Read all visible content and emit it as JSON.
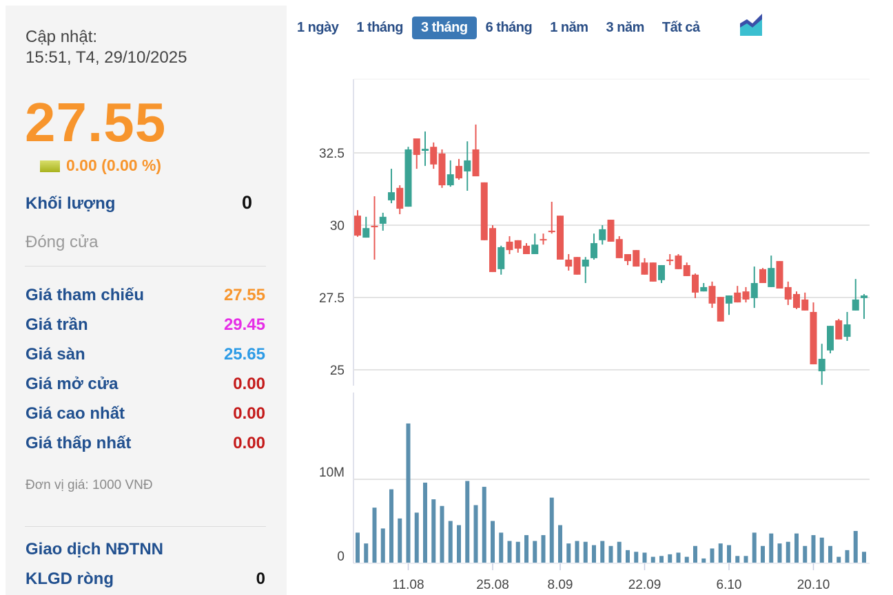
{
  "summary": {
    "update_label": "Cập nhật:",
    "update_time": "15:51, T4, 29/10/2025",
    "price": "27.55",
    "change": "0.00 (0.00 %)",
    "change_icon": "unchanged-square-icon",
    "volume_label": "Khối lượng",
    "volume_value": "0",
    "status": "Đóng cửa"
  },
  "prices": [
    {
      "label": "Giá tham chiếu",
      "value": "27.55",
      "color": "#f7952d"
    },
    {
      "label": "Giá trần",
      "value": "29.45",
      "color": "#e62ee6"
    },
    {
      "label": "Giá sàn",
      "value": "25.65",
      "color": "#2d9be6"
    },
    {
      "label": "Giá mở cửa",
      "value": "0.00",
      "color": "#c41a1a"
    },
    {
      "label": "Giá cao nhất",
      "value": "0.00",
      "color": "#c41a1a"
    },
    {
      "label": "Giá thấp nhất",
      "value": "0.00",
      "color": "#c41a1a"
    }
  ],
  "unit_note": "Đơn vị giá: 1000 VNĐ",
  "foreign": {
    "title": "Giao dịch NĐTNN",
    "net_label": "KLGD ròng",
    "net_value": "0"
  },
  "range_tabs": [
    {
      "label": "1 ngày",
      "active": false
    },
    {
      "label": "1 tháng",
      "active": false
    },
    {
      "label": "3 tháng",
      "active": true
    },
    {
      "label": "6 tháng",
      "active": false
    },
    {
      "label": "1 năm",
      "active": false
    },
    {
      "label": "3 năm",
      "active": false
    },
    {
      "label": "Tất cả",
      "active": false
    }
  ],
  "chart_type_icon": "area-chart-icon",
  "chart_data": {
    "type": "candlestick",
    "up_color": "#3aa394",
    "down_color": "#e85a55",
    "volume_color": "#5b8fae",
    "price_axis": {
      "ticks": [
        "25",
        "27.5",
        "30",
        "32.5"
      ],
      "grid": true
    },
    "volume_axis": {
      "ticks": [
        "0",
        "10M"
      ],
      "grid": true
    },
    "x_ticks": [
      {
        "label": "11.08",
        "date": "11.08"
      },
      {
        "label": "25.08",
        "date": "25.08"
      },
      {
        "label": "8.09",
        "date": "08.09"
      },
      {
        "label": "22.09",
        "date": "22.09"
      },
      {
        "label": "6.10",
        "date": "06.10"
      },
      {
        "label": "20.10",
        "date": "20.10"
      }
    ],
    "dates": [
      "01.08",
      "04.08",
      "05.08",
      "06.08",
      "07.08",
      "08.08",
      "11.08",
      "12.08",
      "13.08",
      "14.08",
      "15.08",
      "18.08",
      "19.08",
      "20.08",
      "21.08",
      "22.08",
      "25.08",
      "26.08",
      "27.08",
      "28.08",
      "29.08",
      "03.09",
      "04.09",
      "05.09",
      "08.09",
      "09.09",
      "10.09",
      "11.09",
      "12.09",
      "15.09",
      "16.09",
      "17.09",
      "18.09",
      "19.09",
      "22.09",
      "23.09",
      "24.09",
      "25.09",
      "26.09",
      "29.09",
      "30.09",
      "01.10",
      "02.10",
      "03.10",
      "06.10",
      "07.10",
      "08.10",
      "09.10",
      "10.10",
      "13.10",
      "14.10",
      "15.10",
      "16.10",
      "17.10",
      "20.10",
      "21.10",
      "22.10",
      "23.10",
      "24.10",
      "27.10",
      "28.10"
    ],
    "ohlc": [
      [
        30.33,
        30.52,
        29.6,
        29.64
      ],
      [
        29.57,
        30.29,
        29.57,
        29.9
      ],
      [
        29.98,
        31.0,
        28.81,
        29.93
      ],
      [
        30.05,
        30.43,
        29.81,
        30.29
      ],
      [
        30.86,
        31.95,
        30.76,
        31.14
      ],
      [
        31.29,
        31.38,
        30.38,
        30.57
      ],
      [
        30.64,
        32.71,
        30.64,
        32.62
      ],
      [
        33.0,
        33.0,
        31.95,
        32.43
      ],
      [
        32.57,
        33.24,
        32.05,
        32.64
      ],
      [
        32.71,
        32.86,
        31.95,
        32.1
      ],
      [
        32.48,
        32.62,
        31.29,
        31.38
      ],
      [
        31.38,
        32.24,
        31.33,
        31.76
      ],
      [
        32.05,
        32.29,
        31.57,
        31.62
      ],
      [
        31.86,
        32.9,
        31.19,
        32.24
      ],
      [
        32.62,
        33.48,
        31.69,
        31.69
      ],
      [
        31.48,
        31.48,
        29.48,
        29.48
      ],
      [
        29.9,
        30.0,
        28.38,
        28.38
      ],
      [
        28.48,
        29.29,
        28.29,
        29.24
      ],
      [
        29.43,
        29.62,
        29.0,
        29.14
      ],
      [
        29.48,
        29.48,
        29.05,
        29.19
      ],
      [
        29.29,
        29.38,
        29.0,
        29.0
      ],
      [
        29.0,
        29.71,
        29.0,
        29.33
      ],
      [
        29.52,
        29.71,
        29.33,
        29.48
      ],
      [
        29.81,
        30.81,
        29.71,
        29.76
      ],
      [
        30.33,
        30.33,
        28.81,
        28.81
      ],
      [
        28.81,
        29.0,
        28.43,
        28.57
      ],
      [
        28.9,
        28.9,
        28.29,
        28.29
      ],
      [
        28.57,
        28.9,
        28.0,
        28.81
      ],
      [
        28.86,
        29.71,
        28.81,
        29.38
      ],
      [
        29.48,
        30.0,
        29.33,
        29.86
      ],
      [
        30.19,
        30.19,
        29.43,
        29.43
      ],
      [
        29.52,
        29.62,
        28.86,
        28.86
      ],
      [
        29.0,
        29.0,
        28.62,
        28.76
      ],
      [
        29.14,
        29.14,
        28.57,
        28.57
      ],
      [
        28.71,
        28.86,
        28.29,
        28.29
      ],
      [
        28.71,
        28.71,
        28.05,
        28.05
      ],
      [
        28.1,
        28.62,
        28.0,
        28.62
      ],
      [
        28.81,
        29.0,
        28.62,
        28.76
      ],
      [
        28.95,
        29.0,
        28.48,
        28.48
      ],
      [
        28.62,
        28.71,
        28.24,
        28.24
      ],
      [
        28.29,
        28.33,
        27.48,
        27.67
      ],
      [
        27.71,
        28.0,
        27.71,
        27.86
      ],
      [
        27.9,
        28.05,
        27.14,
        27.29
      ],
      [
        27.52,
        27.52,
        26.67,
        26.67
      ],
      [
        27.29,
        27.57,
        26.9,
        27.57
      ],
      [
        27.67,
        27.9,
        27.33,
        27.33
      ],
      [
        27.71,
        27.86,
        27.33,
        27.43
      ],
      [
        27.48,
        28.57,
        27.14,
        28.0
      ],
      [
        28.48,
        28.52,
        28.0,
        28.0
      ],
      [
        27.86,
        28.95,
        27.86,
        28.52
      ],
      [
        28.76,
        28.76,
        27.81,
        27.81
      ],
      [
        27.86,
        28.05,
        27.24,
        27.43
      ],
      [
        27.62,
        27.71,
        27.1,
        27.14
      ],
      [
        27.43,
        27.67,
        27.05,
        27.05
      ],
      [
        27.0,
        27.33,
        25.19,
        25.19
      ],
      [
        24.95,
        25.9,
        24.48,
        25.38
      ],
      [
        25.67,
        26.52,
        25.57,
        26.52
      ],
      [
        26.71,
        26.76,
        26.05,
        26.05
      ],
      [
        26.14,
        27.0,
        26.0,
        26.57
      ],
      [
        27.05,
        28.14,
        27.05,
        27.43
      ],
      [
        27.48,
        27.62,
        26.76,
        27.57
      ]
    ],
    "volume_millions": [
      3.6,
      2.3,
      6.6,
      4.1,
      8.8,
      5.3,
      16.7,
      6.0,
      9.6,
      7.6,
      6.8,
      5.0,
      4.5,
      9.8,
      6.9,
      9.1,
      5.0,
      3.6,
      2.6,
      2.5,
      3.3,
      2.6,
      3.3,
      7.8,
      4.5,
      2.3,
      2.6,
      2.5,
      2.1,
      2.6,
      2.0,
      2.5,
      1.5,
      1.3,
      1.2,
      0.7,
      0.8,
      1.0,
      1.2,
      0.7,
      2.0,
      0.5,
      1.7,
      2.3,
      2.1,
      0.8,
      0.8,
      3.6,
      2.0,
      3.5,
      2.3,
      2.5,
      3.5,
      2.0,
      3.3,
      3.0,
      2.0,
      0.7,
      1.5,
      3.8,
      1.3
    ]
  }
}
